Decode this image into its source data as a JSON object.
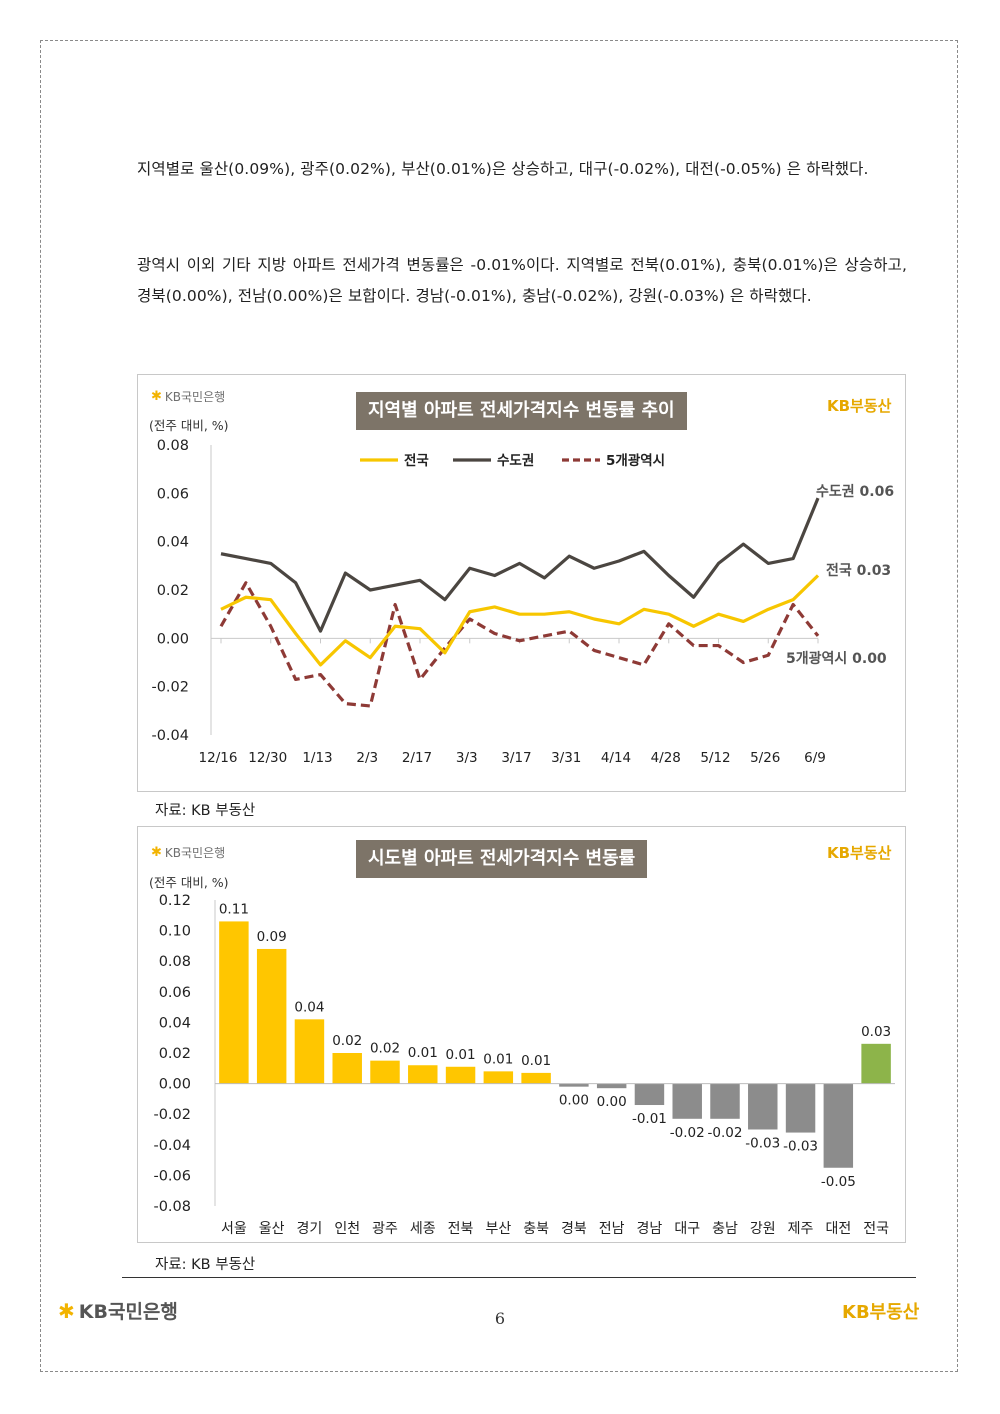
{
  "paragraphs": {
    "p1": "지역별로 울산(0.09%), 광주(0.02%), 부산(0.01%)은 상승하고, 대구(-0.02%), 대전(-0.05%) 은 하락했다.",
    "p2": "광역시 이외 기타 지방 아파트 전세가격 변동률은 -0.01%이다. 지역별로 전북(0.01%), 충북(0.01%)은 상승하고, 경북(0.00%), 전남(0.00%)은 보합이다. 경남(-0.01%), 충남(-0.02%), 강원(-0.03%) 은 하락했다."
  },
  "brand": {
    "bank_logo": "KB국민은행",
    "realestate_logo": "KB부동산",
    "kb_gold": "#f2b300"
  },
  "chart1": {
    "source": "자료: KB 부동산",
    "unit": "(전주 대비, %)"
  },
  "chart2": {
    "source": "자료: KB 부동산",
    "unit": "(전주 대비, %)"
  },
  "chart_data": [
    {
      "type": "line",
      "title": "지역별 아파트 전세가격지수 변동률 추이",
      "ylim": [
        -0.04,
        0.08
      ],
      "yticks": [
        "0.08",
        "0.06",
        "0.04",
        "0.02",
        "0.00",
        "-0.02",
        "-0.04"
      ],
      "ytick_values": [
        0.08,
        0.06,
        0.04,
        0.02,
        0.0,
        -0.02,
        -0.04
      ],
      "xtick_labels": [
        "12/16",
        "12/30",
        "1/13",
        "2/3",
        "2/17",
        "3/3",
        "3/17",
        "3/31",
        "4/14",
        "4/28",
        "5/12",
        "5/26",
        "6/9"
      ],
      "legend_position": "top-center",
      "series": [
        {
          "name": "전국",
          "color": "#f7c600",
          "style": "solid",
          "values": [
            0.012,
            0.017,
            0.016,
            0.002,
            -0.011,
            -0.001,
            -0.008,
            0.005,
            0.004,
            -0.006,
            0.011,
            0.013,
            0.01,
            0.01,
            0.011,
            0.008,
            0.006,
            0.012,
            0.01,
            0.005,
            0.01,
            0.007,
            0.012,
            0.016,
            0.026
          ],
          "end_label": "전국 0.03"
        },
        {
          "name": "수도권",
          "color": "#4b4641",
          "style": "solid",
          "values": [
            0.035,
            0.033,
            0.031,
            0.023,
            0.003,
            0.027,
            0.02,
            0.022,
            0.024,
            0.016,
            0.029,
            0.026,
            0.031,
            0.025,
            0.034,
            0.029,
            0.032,
            0.036,
            0.026,
            0.017,
            0.031,
            0.039,
            0.031,
            0.033,
            0.058
          ],
          "end_label": "수도권 0.06"
        },
        {
          "name": "5개광역시",
          "color": "#8e3a36",
          "style": "dashed",
          "values": [
            0.005,
            0.023,
            0.005,
            -0.017,
            -0.015,
            -0.027,
            -0.028,
            0.014,
            -0.017,
            -0.004,
            0.008,
            0.002,
            -0.001,
            0.001,
            0.003,
            -0.005,
            -0.008,
            -0.011,
            0.006,
            -0.003,
            -0.003,
            -0.01,
            -0.007,
            0.014,
            0.001
          ],
          "end_label": "5개광역시 0.00"
        }
      ]
    },
    {
      "type": "bar",
      "title": "시도별 아파트 전세가격지수 변동률",
      "ylim": [
        -0.08,
        0.12
      ],
      "yticks": [
        "0.12",
        "0.10",
        "0.08",
        "0.06",
        "0.04",
        "0.02",
        "0.00",
        "-0.02",
        "-0.04",
        "-0.06",
        "-0.08"
      ],
      "ytick_values": [
        0.12,
        0.1,
        0.08,
        0.06,
        0.04,
        0.02,
        0.0,
        -0.02,
        -0.04,
        -0.06,
        -0.08
      ],
      "categories": [
        "서울",
        "울산",
        "경기",
        "인천",
        "광주",
        "세종",
        "전북",
        "부산",
        "충북",
        "경북",
        "전남",
        "경남",
        "대구",
        "충남",
        "강원",
        "제주",
        "대전",
        "전국"
      ],
      "values": [
        0.106,
        0.088,
        0.042,
        0.02,
        0.015,
        0.012,
        0.011,
        0.008,
        0.007,
        -0.002,
        -0.003,
        -0.014,
        -0.023,
        -0.023,
        -0.03,
        -0.032,
        -0.055,
        0.026
      ],
      "data_labels": [
        "0.11",
        "0.09",
        "0.04",
        "0.02",
        "0.02",
        "0.01",
        "0.01",
        "0.01",
        "0.01",
        "0.00",
        "0.00",
        "-0.01",
        "-0.02",
        "-0.02",
        "-0.03",
        "-0.03",
        "-0.05",
        "0.03"
      ],
      "colors": {
        "positive": "#ffc600",
        "negative": "#8c8c8c",
        "national": "#8db44a"
      }
    }
  ],
  "footer": {
    "page_number": "6"
  }
}
